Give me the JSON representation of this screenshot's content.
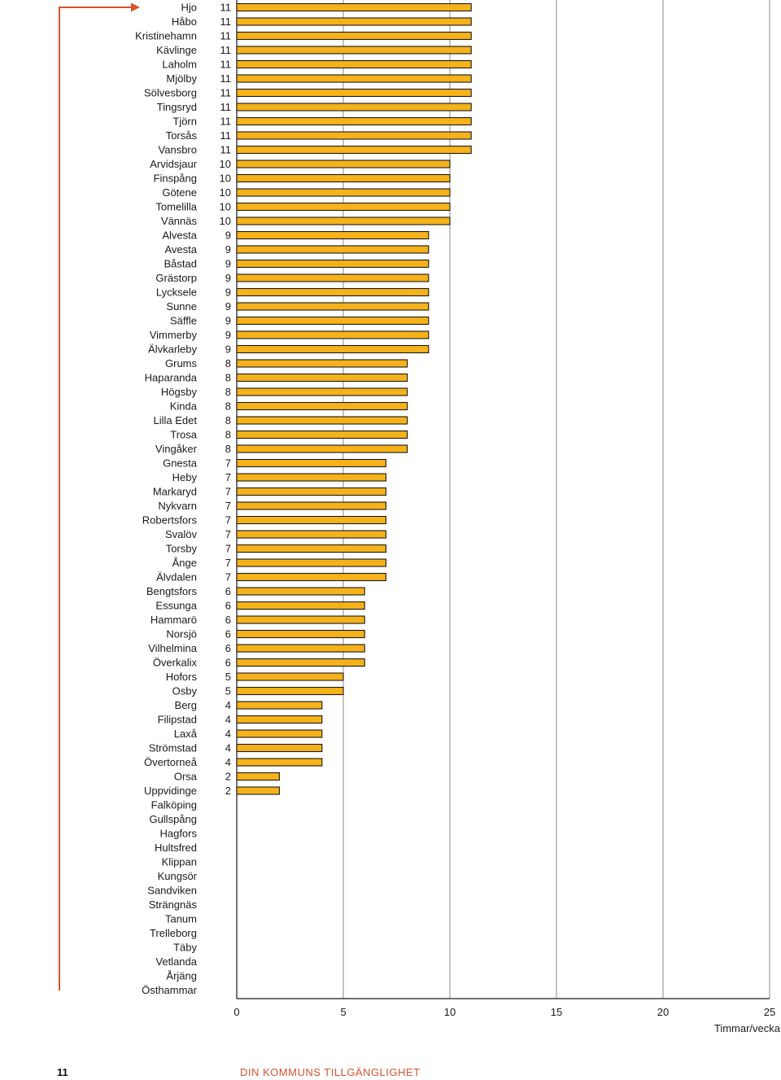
{
  "chart_data": {
    "type": "bar",
    "orientation": "horizontal",
    "categories": [
      "Hjo",
      "Håbo",
      "Kristinehamn",
      "Kävlinge",
      "Laholm",
      "Mjölby",
      "Sölvesborg",
      "Tingsryd",
      "Tjörn",
      "Torsås",
      "Vansbro",
      "Arvidsjaur",
      "Finspång",
      "Götene",
      "Tomelilla",
      "Vännäs",
      "Alvesta",
      "Avesta",
      "Båstad",
      "Grästorp",
      "Lycksele",
      "Sunne",
      "Säffle",
      "Vimmerby",
      "Älvkarleby",
      "Grums",
      "Haparanda",
      "Högsby",
      "Kinda",
      "Lilla Edet",
      "Trosa",
      "Vingåker",
      "Gnesta",
      "Heby",
      "Markaryd",
      "Nykvarn",
      "Robertsfors",
      "Svalöv",
      "Torsby",
      "Ånge",
      "Älvdalen",
      "Bengtsfors",
      "Essunga",
      "Hammarö",
      "Norsjö",
      "Vilhelmina",
      "Överkalix",
      "Hofors",
      "Osby",
      "Berg",
      "Filipstad",
      "Laxå",
      "Strömstad",
      "Övertorneå",
      "Orsa",
      "Uppvidinge",
      "Falköping",
      "Gullspång",
      "Hagfors",
      "Hultsfred",
      "Klippan",
      "Kungsör",
      "Sandviken",
      "Strängnäs",
      "Tanum",
      "Trelleborg",
      "Täby",
      "Vetlanda",
      "Årjäng",
      "Östhammar"
    ],
    "values": [
      11,
      11,
      11,
      11,
      11,
      11,
      11,
      11,
      11,
      11,
      11,
      10,
      10,
      10,
      10,
      10,
      9,
      9,
      9,
      9,
      9,
      9,
      9,
      9,
      9,
      8,
      8,
      8,
      8,
      8,
      8,
      8,
      7,
      7,
      7,
      7,
      7,
      7,
      7,
      7,
      7,
      6,
      6,
      6,
      6,
      6,
      6,
      5,
      5,
      4,
      4,
      4,
      4,
      4,
      2,
      2,
      null,
      null,
      null,
      null,
      null,
      null,
      null,
      null,
      null,
      null,
      null,
      null,
      null,
      null
    ],
    "value_labels": [
      "11",
      "11",
      "11",
      "11",
      "11",
      "11",
      "11",
      "11",
      "11",
      "11",
      "11",
      "10",
      "10",
      "10",
      "10",
      "10",
      "9",
      "9",
      "9",
      "9",
      "9",
      "9",
      "9",
      "9",
      "9",
      "8",
      "8",
      "8",
      "8",
      "8",
      "8",
      "8",
      "7",
      "7",
      "7",
      "7",
      "7",
      "7",
      "7",
      "7",
      "7",
      "6",
      "6",
      "6",
      "6",
      "6",
      "6",
      "5",
      "5",
      "4",
      "4",
      "4",
      "4",
      "4",
      "2",
      "2",
      "",
      "",
      "",
      "",
      "",
      "",
      "",
      "",
      "",
      "",
      "",
      "",
      "",
      ""
    ],
    "x_ticks": [
      "0",
      "5",
      "10",
      "15",
      "20",
      "25"
    ],
    "xlim": [
      0,
      25
    ],
    "xlabel": "Timmar/vecka",
    "grid": "vertical",
    "bar_color": "#f5b21a",
    "bar_edge_color": "#1a1a1a",
    "arrow_color": "#d9532b"
  },
  "footer": {
    "page_number": "11",
    "title": "DIN KOMMUNS TILLGÄNGLIGHET"
  }
}
